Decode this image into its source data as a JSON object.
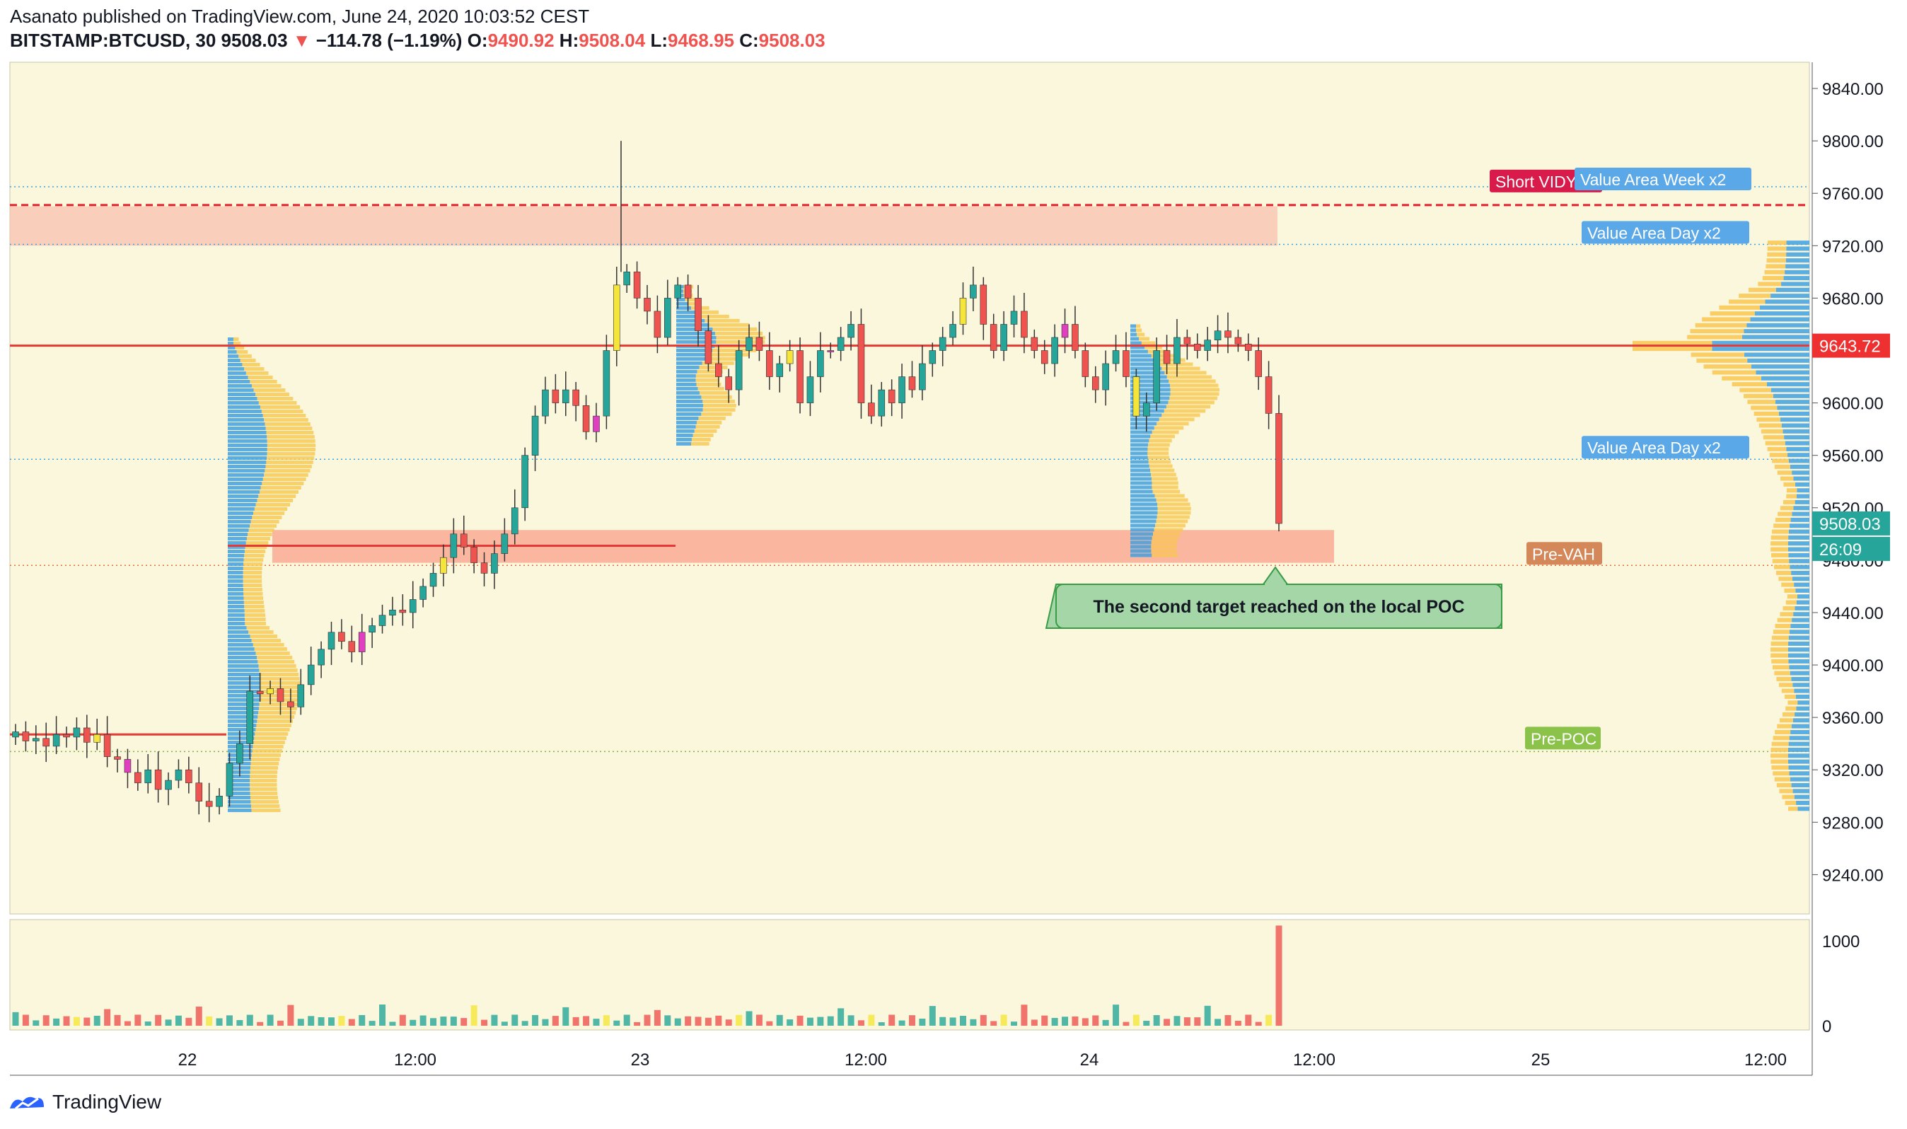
{
  "header": {
    "author_line": "Asanato published on TradingView.com, June 24, 2020 10:03:52 CEST",
    "symbol": "BITSTAMP:BTCUSD, 30",
    "price": "9508.03",
    "change": "−114.78 (−1.19%)",
    "o_label": "O:",
    "o": "9490.92",
    "h_label": "H:",
    "h": "9508.04",
    "l_label": "L:",
    "l": "9468.95",
    "c_label": "C:",
    "c": "9508.03",
    "down_arrow": "▼"
  },
  "brand": "TradingView",
  "colors": {
    "bg": "#fbf7dc",
    "up": "#26a69a",
    "down": "#ef5350",
    "magenta": "#e040c0",
    "yellow": "#f5e53a",
    "vp_blue": "#3fa0e0",
    "vp_yellow": "#f9c74f",
    "poc_red": "#e53935",
    "zone_pink": "#f8c1b0",
    "zone_red": "#fba08c"
  },
  "chart_data": {
    "type": "candlestick",
    "symbol": "BITSTAMP:BTCUSD",
    "timeframe": "30",
    "x_tick_labels": [
      "22",
      "12:00",
      "23",
      "12:00",
      "24",
      "12:00",
      "25",
      "12:00"
    ],
    "y_tick_labels": [
      "9840.00",
      "9800.00",
      "9760.00",
      "9720.00",
      "9680.00",
      "9640.00",
      "9600.00",
      "9560.00",
      "9520.00",
      "9480.00",
      "9440.00",
      "9400.00",
      "9360.00",
      "9320.00",
      "9280.00",
      "9240.00"
    ],
    "ylim": [
      9210,
      9860
    ],
    "volume_tick_labels": [
      "1000",
      "0"
    ],
    "volume_ylim": [
      0,
      1250
    ],
    "last_price": "9508.03",
    "countdown": "26:09",
    "poc_price": "9643.72",
    "levels": [
      {
        "label": "Short VIDYA",
        "price": 9751,
        "style": "dashed"
      },
      {
        "label": "Value Area Week x2",
        "price": 9765,
        "style": "dotted"
      },
      {
        "label": "Value Area Day x2",
        "price": 9721,
        "style": "dotted"
      },
      {
        "label": "Value Area Day x2",
        "price": 9557,
        "style": "dotted"
      },
      {
        "label": "Pre-VAH",
        "price": 9476,
        "style": "dotted"
      },
      {
        "label": "Pre-POC",
        "price": 9334,
        "style": "dotted"
      }
    ],
    "zones": [
      {
        "from": 9720,
        "to": 9750
      },
      {
        "from": 9478,
        "to": 9503
      }
    ],
    "annotation": "The second target reached on the local POC",
    "close_series": [
      9349,
      9342,
      9344,
      9338,
      9347,
      9345,
      9352,
      9341,
      9347,
      9330,
      9328,
      9318,
      9310,
      9320,
      9305,
      9312,
      9320,
      9310,
      9296,
      9292,
      9300,
      9325,
      9340,
      9380,
      9378,
      9382,
      9372,
      9368,
      9385,
      9400,
      9412,
      9425,
      9418,
      9410,
      9425,
      9430,
      9438,
      9442,
      9440,
      9450,
      9460,
      9470,
      9482,
      9500,
      9490,
      9478,
      9470,
      9485,
      9500,
      9520,
      9560,
      9590,
      9610,
      9600,
      9610,
      9598,
      9578,
      9590,
      9640,
      9690,
      9700,
      9680,
      9670,
      9650,
      9680,
      9690,
      9680,
      9655,
      9630,
      9620,
      9610,
      9640,
      9650,
      9640,
      9620,
      9630,
      9640,
      9600,
      9620,
      9640,
      9640,
      9650,
      9660,
      9600,
      9590,
      9610,
      9600,
      9620,
      9610,
      9630,
      9640,
      9650,
      9660,
      9680,
      9690,
      9660,
      9640,
      9660,
      9670,
      9650,
      9640,
      9630,
      9650,
      9660,
      9640,
      9620,
      9610,
      9630,
      9640,
      9620,
      9590,
      9600,
      9640,
      9630,
      9650,
      9645,
      9640,
      9648,
      9655,
      9650,
      9645,
      9640,
      9620,
      9592,
      9508
    ]
  }
}
